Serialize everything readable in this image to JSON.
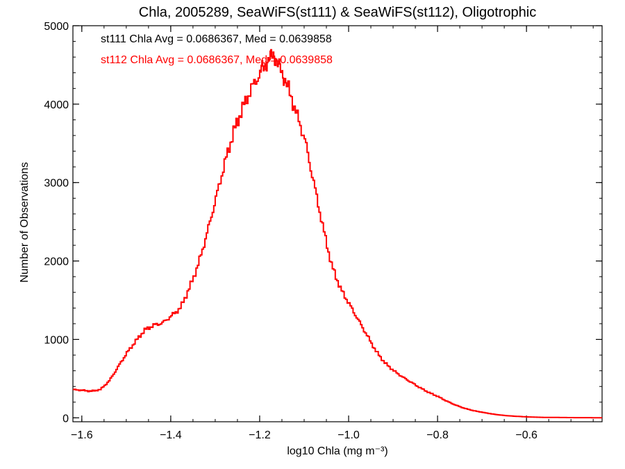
{
  "chart_data": {
    "type": "line",
    "style": "step-histogram",
    "title": "Chla, 2005289, SeaWiFS(st111) & SeaWiFS(st112), Oligotrophic",
    "xlabel": "log10 Chla (mg m⁻³)",
    "ylabel": "Number of Observations",
    "xlim": [
      -1.62,
      -0.43
    ],
    "ylim": [
      -50,
      5000
    ],
    "xticks": [
      -1.6,
      -1.4,
      -1.2,
      -1.0,
      -0.8,
      -0.6
    ],
    "xtick_labels": [
      "−1.6",
      "−1.4",
      "−1.2",
      "−1.0",
      "−0.8",
      "−0.6"
    ],
    "yticks": [
      0,
      1000,
      2000,
      3000,
      4000,
      5000
    ],
    "ytick_labels": [
      "0",
      "1000",
      "2000",
      "3000",
      "4000",
      "5000"
    ],
    "grid": false,
    "annotations": [
      {
        "text": "st111 Chla Avg = 0.0686367, Med = 0.0639858",
        "color": "#000000"
      },
      {
        "text": "st112 Chla Avg = 0.0686367, Med = 0.0639858",
        "color": "#ff0000"
      }
    ],
    "series": [
      {
        "color": "#ff0000",
        "x": [
          -1.62,
          -1.6,
          -1.58,
          -1.56,
          -1.54,
          -1.52,
          -1.5,
          -1.48,
          -1.46,
          -1.44,
          -1.42,
          -1.4,
          -1.38,
          -1.36,
          -1.34,
          -1.32,
          -1.3,
          -1.28,
          -1.26,
          -1.24,
          -1.22,
          -1.2,
          -1.19,
          -1.18,
          -1.17,
          -1.16,
          -1.15,
          -1.14,
          -1.12,
          -1.1,
          -1.08,
          -1.06,
          -1.04,
          -1.02,
          -1.0,
          -0.98,
          -0.96,
          -0.94,
          -0.92,
          -0.9,
          -0.88,
          -0.86,
          -0.84,
          -0.82,
          -0.8,
          -0.78,
          -0.76,
          -0.74,
          -0.72,
          -0.7,
          -0.68,
          -0.66,
          -0.64,
          -0.62,
          -0.6,
          -0.58,
          -0.56,
          -0.54,
          -0.52,
          -0.5,
          -0.48,
          -0.46,
          -0.44
        ],
        "y": [
          360,
          350,
          340,
          360,
          470,
          650,
          830,
          980,
          1120,
          1180,
          1210,
          1300,
          1400,
          1650,
          1950,
          2350,
          2800,
          3250,
          3650,
          3950,
          4200,
          4400,
          4500,
          4550,
          4650,
          4500,
          4400,
          4250,
          3900,
          3550,
          3000,
          2450,
          1950,
          1650,
          1450,
          1250,
          1050,
          850,
          700,
          600,
          520,
          450,
          380,
          320,
          270,
          210,
          160,
          120,
          90,
          70,
          50,
          35,
          25,
          18,
          12,
          8,
          6,
          5,
          4,
          3,
          2,
          2,
          1
        ]
      }
    ]
  }
}
